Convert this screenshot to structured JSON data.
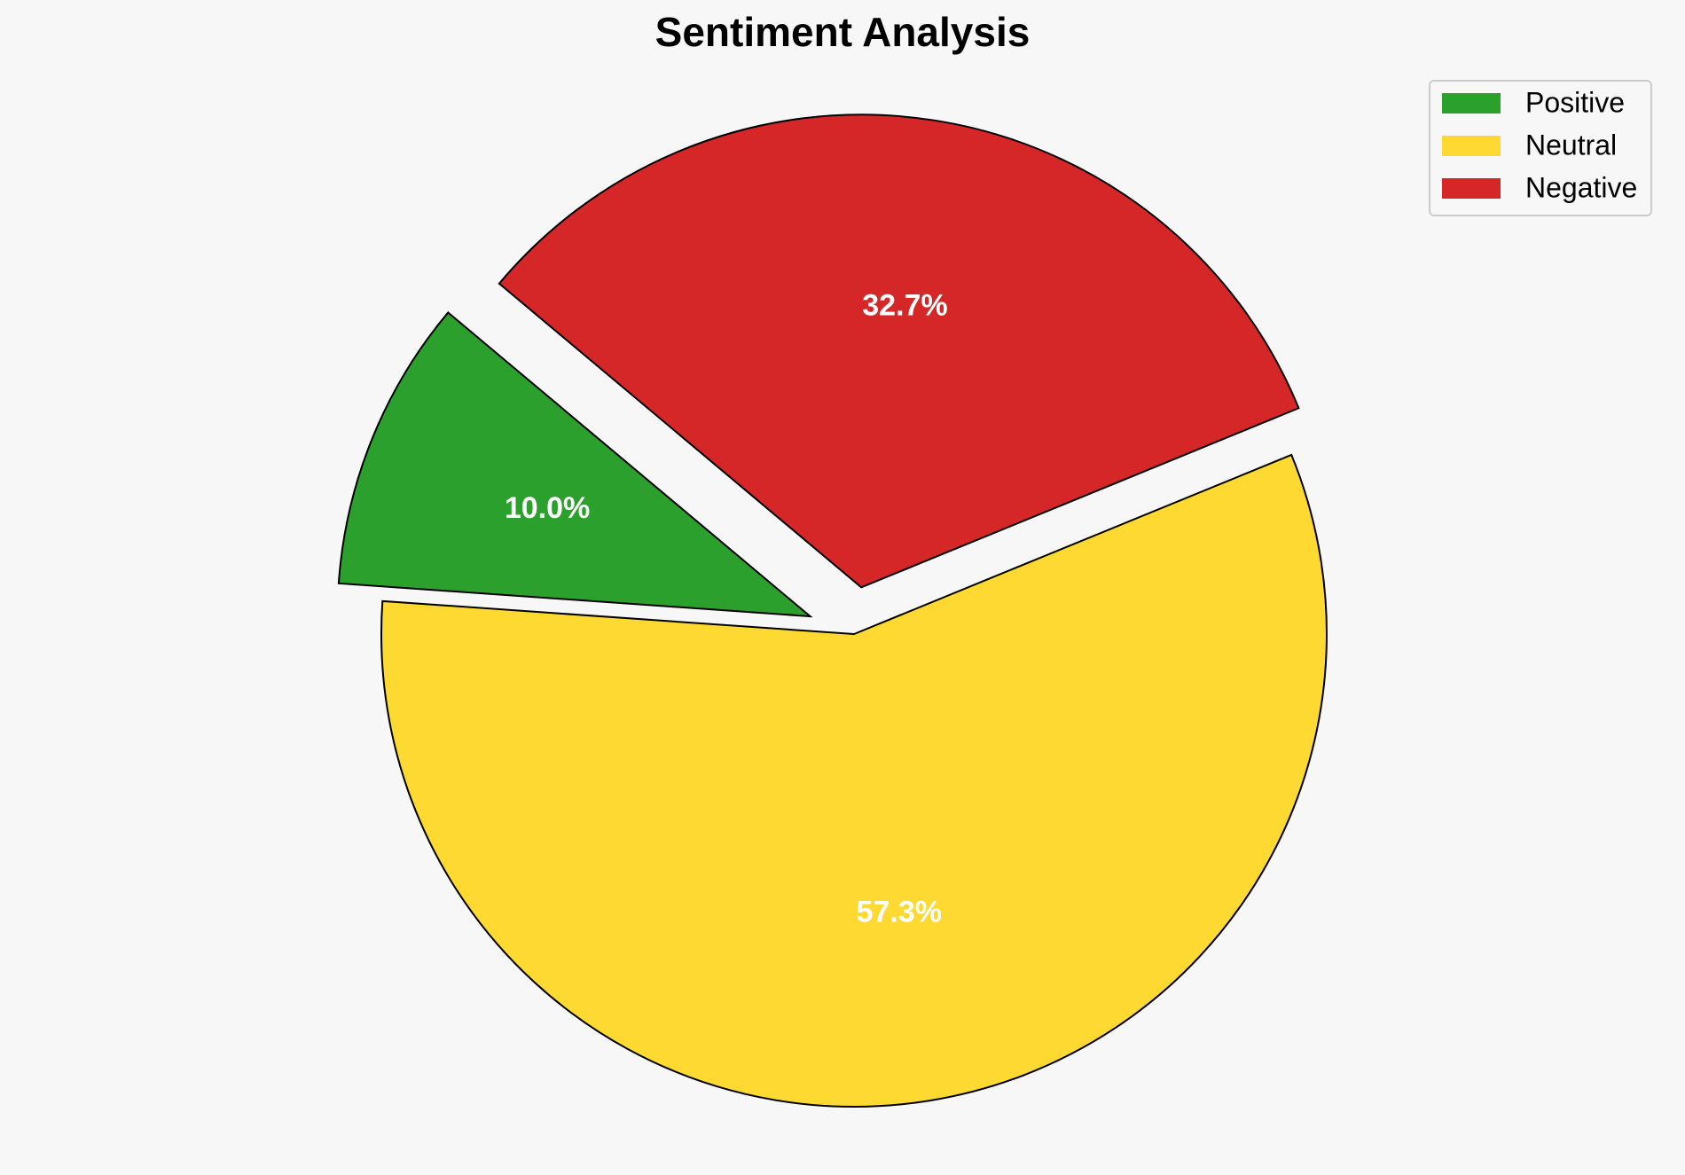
{
  "chart_data": {
    "type": "pie",
    "title": "Sentiment Analysis",
    "categories": [
      "Positive",
      "Neutral",
      "Negative"
    ],
    "values": [
      10.0,
      57.3,
      32.7
    ],
    "value_labels": [
      "10.0%",
      "57.3%",
      "32.7%"
    ],
    "colors": [
      "#2ca02c",
      "#fed931",
      "#d62728"
    ],
    "explode": [
      0.1,
      0,
      0.1
    ],
    "startangle": 140,
    "legend": "upper right"
  }
}
